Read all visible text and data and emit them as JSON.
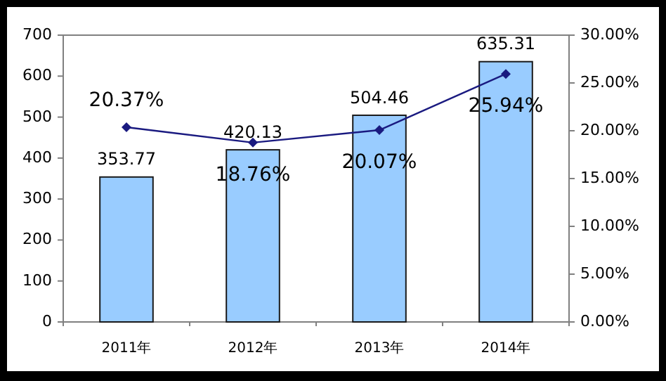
{
  "chart_data": {
    "type": "bar",
    "categories": [
      "2011年",
      "2012年",
      "2013年",
      "2014年"
    ],
    "series": [
      {
        "color": "#99ccff",
        "values": [
          353.77,
          420.13,
          504.46,
          635.31
        ],
        "value_labels": [
          "353.77",
          "420.13",
          "504.46",
          "635.31"
        ]
      },
      {
        "type": "line",
        "axis": "y2",
        "color": "#1a1a80",
        "marker": "diamond",
        "values": [
          20.37,
          18.76,
          20.07,
          25.94
        ],
        "value_labels": [
          "20.37%",
          "18.76%",
          "20.07%",
          "25.94%"
        ]
      }
    ],
    "ylim": [
      0,
      700
    ],
    "yticks": [
      0,
      100,
      200,
      300,
      400,
      500,
      600,
      700
    ],
    "y2lim": [
      0,
      30
    ],
    "y2ticks": [
      {
        "value": 0,
        "label": "0.00%"
      },
      {
        "value": 5,
        "label": "5.00%"
      },
      {
        "value": 10,
        "label": "10.00%"
      },
      {
        "value": 15,
        "label": "15.00%"
      },
      {
        "value": 20,
        "label": "20.00%"
      },
      {
        "value": 25,
        "label": "25.00%"
      },
      {
        "value": 30,
        "label": "30.00%"
      }
    ],
    "grid": false
  }
}
